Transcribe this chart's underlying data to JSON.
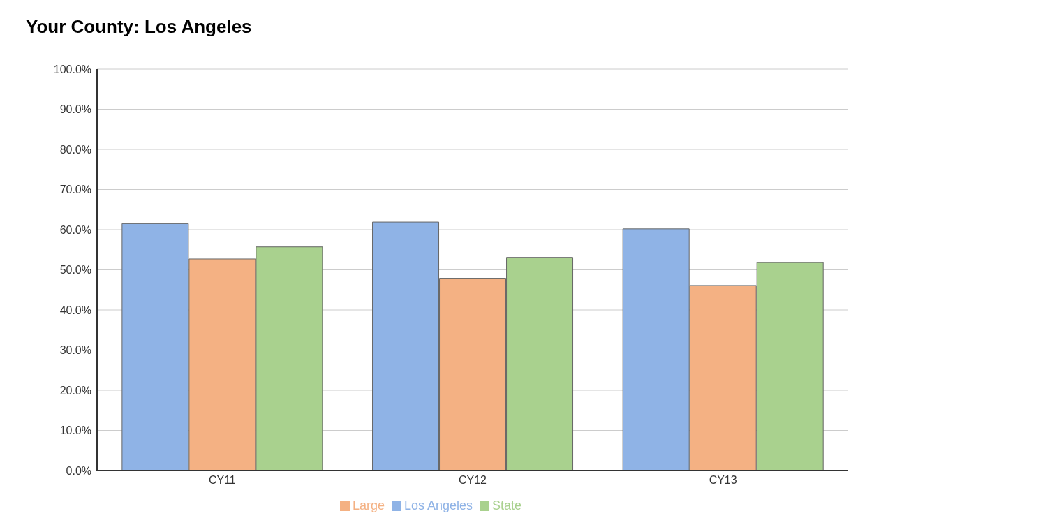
{
  "chart_data": {
    "type": "bar",
    "title": "Your County: Los Angeles",
    "categories": [
      "CY11",
      "CY12",
      "CY13"
    ],
    "series": [
      {
        "name": "Los Angeles",
        "color": "#8fb3e6",
        "values": [
          61.5,
          61.9,
          60.2
        ]
      },
      {
        "name": "Large",
        "color": "#f4b183",
        "values": [
          52.7,
          47.9,
          46.1
        ]
      },
      {
        "name": "State",
        "color": "#a9d18e",
        "values": [
          55.7,
          53.1,
          51.8
        ]
      }
    ],
    "ylim": [
      0,
      100
    ],
    "yticks": [
      {
        "value": 0,
        "label": "0.0%"
      },
      {
        "value": 10,
        "label": "10.0%"
      },
      {
        "value": 20,
        "label": "20.0%"
      },
      {
        "value": 30,
        "label": "30.0%"
      },
      {
        "value": 40,
        "label": "40.0%"
      },
      {
        "value": 50,
        "label": "50.0%"
      },
      {
        "value": 60,
        "label": "60.0%"
      },
      {
        "value": 70,
        "label": "70.0%"
      },
      {
        "value": 80,
        "label": "80.0%"
      },
      {
        "value": 90,
        "label": "90.0%"
      },
      {
        "value": 100,
        "label": "100.0%"
      }
    ],
    "grid": "y",
    "legend": "bottom"
  }
}
